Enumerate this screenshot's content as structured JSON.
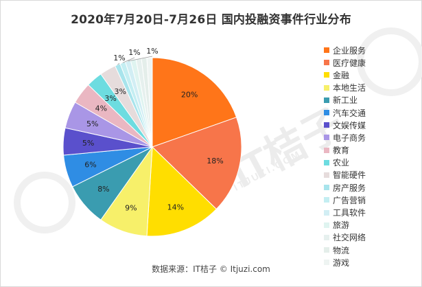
{
  "chart_data": {
    "type": "pie",
    "title": "2020年7月20日-7月26日 国内投融资事件行业分布",
    "slices": [
      {
        "name": "企业服务",
        "value": 20,
        "label": "20%",
        "color": "#ff7519"
      },
      {
        "name": "医疗健康",
        "value": 18,
        "label": "18%",
        "color": "#f7754a"
      },
      {
        "name": "金融",
        "value": 14,
        "label": "14%",
        "color": "#ffde00"
      },
      {
        "name": "本地生活",
        "value": 9,
        "label": "9%",
        "color": "#f7f06a"
      },
      {
        "name": "新工业",
        "value": 8,
        "label": "8%",
        "color": "#3a9cb0"
      },
      {
        "name": "汽车交通",
        "value": 6,
        "label": "6%",
        "color": "#2f8de4"
      },
      {
        "name": "文娱传媒",
        "value": 5,
        "label": "5%",
        "color": "#5a50cc"
      },
      {
        "name": "电子商务",
        "value": 5,
        "label": "5%",
        "color": "#a996e6"
      },
      {
        "name": "教育",
        "value": 4,
        "label": "4%",
        "color": "#eab7c2"
      },
      {
        "name": "农业",
        "value": 3,
        "label": "3%",
        "color": "#6ddce0"
      },
      {
        "name": "智能硬件",
        "value": 3,
        "label": "3%",
        "color": "#e6dcdc"
      },
      {
        "name": "房产服务",
        "value": 1,
        "label": "1%",
        "color": "#a8e4ec"
      },
      {
        "name": "广告营销",
        "value": 1,
        "label": "1%",
        "color": "#c4eef2"
      },
      {
        "name": "工具软件",
        "value": 1,
        "label": "1%",
        "color": "#d2eef4"
      },
      {
        "name": "旅游",
        "value": 1,
        "label": "",
        "color": "#dff4f0"
      },
      {
        "name": "社交网络",
        "value": 1,
        "label": "",
        "color": "#e6f0ee"
      },
      {
        "name": "物流",
        "value": 1,
        "label": "",
        "color": "#e4eeea"
      },
      {
        "name": "游戏",
        "value": 1,
        "label": "",
        "color": "#eef4f2"
      }
    ],
    "legend_position": "right"
  },
  "source": "数据来源：IT桔子 © Itjuzi.com",
  "watermark": {
    "logo_text": "IT桔子",
    "domain": "ITJUZI.COM"
  }
}
